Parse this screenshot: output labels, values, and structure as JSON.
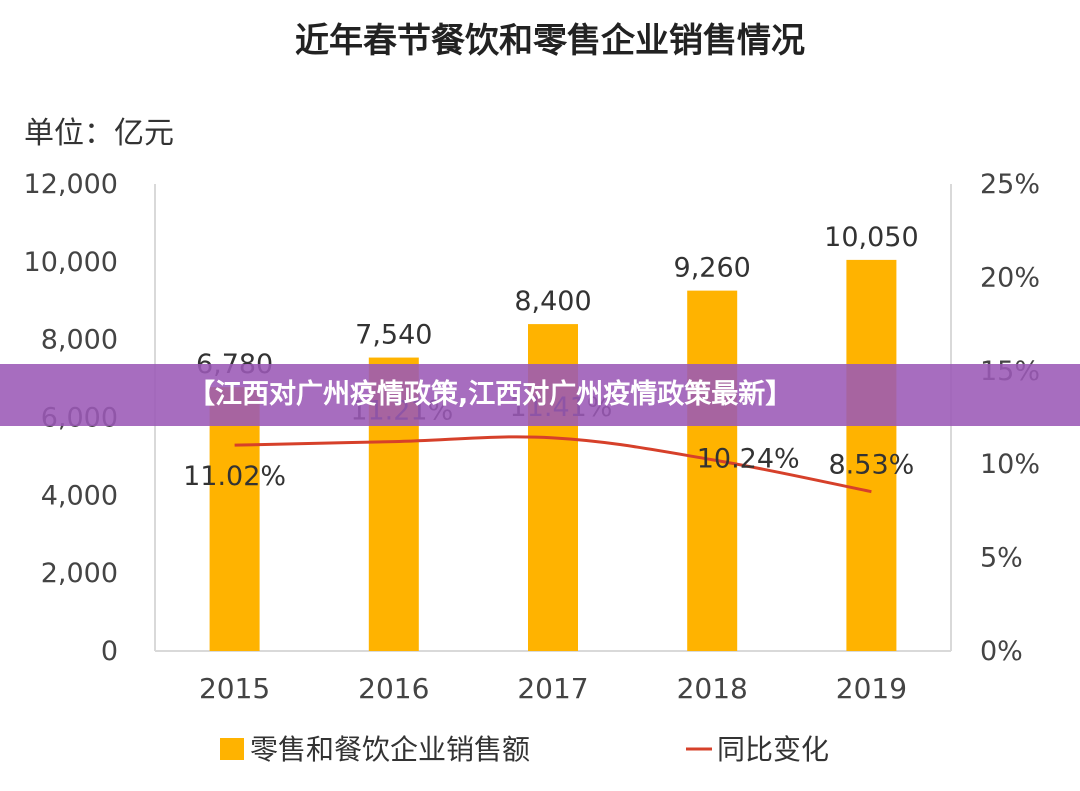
{
  "chart_data": {
    "type": "bar",
    "title": "近年春节餐饮和零售企业销售情况",
    "unit_label": "单位：亿元",
    "categories": [
      "2015",
      "2016",
      "2017",
      "2018",
      "2019"
    ],
    "series": [
      {
        "name": "零售和餐饮企业销售额",
        "type": "bar",
        "axis": "left",
        "color": "#FFB300",
        "values": [
          6780,
          7540,
          8400,
          9260,
          10050
        ],
        "labels": [
          "6,780",
          "7,540",
          "8,400",
          "9,260",
          "10,050"
        ]
      },
      {
        "name": "同比变化",
        "type": "line",
        "axis": "right",
        "color": "#D6402A",
        "values": [
          11.02,
          11.21,
          11.41,
          10.24,
          8.53
        ],
        "labels": [
          "11.02%",
          "11.21%",
          "11.41%",
          "10.24%",
          "8.53%"
        ]
      }
    ],
    "y_left": {
      "min": 0,
      "max": 12000,
      "ticks": [
        "0",
        "2,000",
        "4,000",
        "6,000",
        "8,000",
        "10,000",
        "12,000"
      ]
    },
    "y_right": {
      "min": 0,
      "max": 25,
      "ticks": [
        "0%",
        "5%",
        "10%",
        "15%",
        "20%",
        "25%"
      ]
    },
    "legend_position": "bottom"
  },
  "banner": {
    "text": "【江西对广州疫情政策,江西对广州疫情政策最新】"
  },
  "colors": {
    "bar": "#FFB300",
    "line": "#D6402A",
    "banner": "#9B59B6",
    "axis": "#D9D9D9"
  }
}
